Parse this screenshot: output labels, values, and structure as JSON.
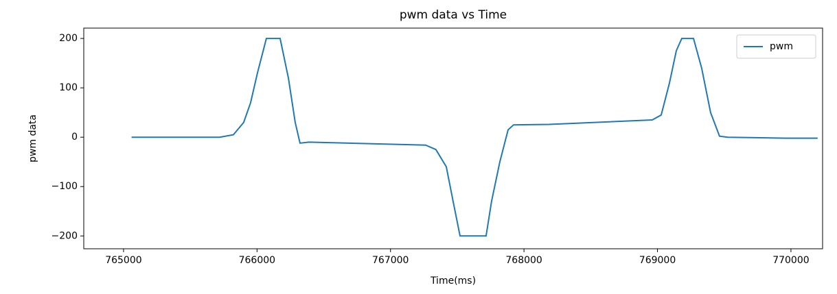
{
  "chart_data": {
    "type": "line",
    "title": "pwm data vs Time",
    "xlabel": "Time(ms)",
    "ylabel": "pwm data",
    "x": [
      765060,
      765720,
      765823,
      765900,
      765952,
      766003,
      766070,
      766173,
      766235,
      766286,
      766322,
      766389,
      767263,
      767340,
      767418,
      767469,
      767521,
      767716,
      767757,
      767819,
      767881,
      767922,
      768189,
      768961,
      769028,
      769090,
      769141,
      769182,
      769270,
      769331,
      769398,
      769465,
      769527,
      769733,
      769974,
      770200
    ],
    "series": [
      {
        "name": "pwm",
        "color": "#1f77b4",
        "values": [
          0,
          0,
          5,
          30,
          70,
          130,
          200,
          200,
          120,
          30,
          -12,
          -10,
          -16,
          -25,
          -60,
          -130,
          -200,
          -200,
          -130,
          -50,
          15,
          25,
          26,
          35,
          45,
          110,
          175,
          200,
          200,
          140,
          50,
          2,
          0,
          -1,
          -2,
          -2
        ]
      }
    ],
    "xlim": [
      764702,
      770237
    ],
    "xticks": [
      765000,
      766000,
      767000,
      768000,
      769000,
      770000
    ],
    "ylim": [
      -226,
      221
    ],
    "yticks": [
      {
        "value": -200,
        "label": "−200"
      },
      {
        "value": -100,
        "label": "−100"
      },
      0,
      100,
      200
    ],
    "legend": "upper right"
  }
}
